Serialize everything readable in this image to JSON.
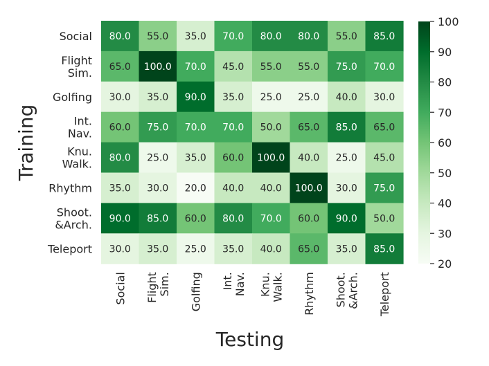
{
  "chart_data": {
    "type": "heatmap",
    "xlabel": "Testing",
    "ylabel": "Training",
    "x_categories": [
      [
        "Social"
      ],
      [
        "Flight",
        "Sim."
      ],
      [
        "Golfing"
      ],
      [
        "Int.",
        "Nav."
      ],
      [
        "Knu.",
        "Walk."
      ],
      [
        "Rhythm"
      ],
      [
        "Shoot.",
        "&Arch."
      ],
      [
        "Teleport"
      ]
    ],
    "y_categories": [
      [
        "Social"
      ],
      [
        "Flight",
        "Sim."
      ],
      [
        "Golfing"
      ],
      [
        "Int.",
        "Nav."
      ],
      [
        "Knu.",
        "Walk."
      ],
      [
        "Rhythm"
      ],
      [
        "Shoot.",
        "&Arch."
      ],
      [
        "Teleport"
      ]
    ],
    "values": [
      [
        80.0,
        55.0,
        35.0,
        70.0,
        80.0,
        80.0,
        55.0,
        85.0
      ],
      [
        65.0,
        100.0,
        70.0,
        45.0,
        55.0,
        55.0,
        75.0,
        70.0
      ],
      [
        30.0,
        35.0,
        90.0,
        35.0,
        25.0,
        25.0,
        40.0,
        30.0
      ],
      [
        60.0,
        75.0,
        70.0,
        70.0,
        50.0,
        65.0,
        85.0,
        65.0
      ],
      [
        80.0,
        25.0,
        35.0,
        60.0,
        100.0,
        40.0,
        25.0,
        45.0
      ],
      [
        35.0,
        30.0,
        20.0,
        40.0,
        40.0,
        100.0,
        30.0,
        75.0
      ],
      [
        90.0,
        85.0,
        60.0,
        80.0,
        70.0,
        60.0,
        90.0,
        50.0
      ],
      [
        30.0,
        35.0,
        25.0,
        35.0,
        40.0,
        65.0,
        35.0,
        85.0
      ]
    ],
    "colormap": "Greens",
    "vmin": 20,
    "vmax": 100,
    "colorbar_ticks": [
      20,
      30,
      40,
      50,
      60,
      70,
      80,
      90,
      100
    ],
    "value_format": "1 decimal"
  }
}
